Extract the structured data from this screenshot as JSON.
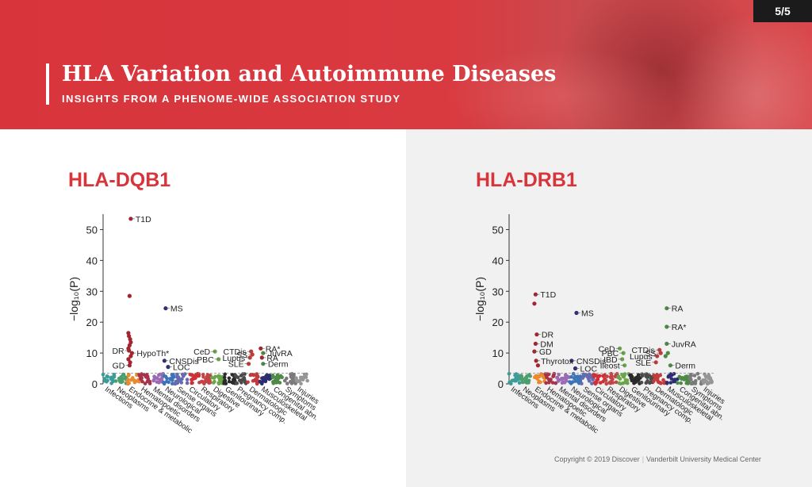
{
  "page": {
    "title": "HLA Variation and Autoimmune Diseases",
    "subtitle": "INSIGHTS FROM A PHENOME-WIDE ASSOCIATION STUDY",
    "page_number": "5/5",
    "footer": {
      "copyright": "Copyright © 2019 Discover",
      "organization": "Vanderbilt University Medical Center"
    }
  },
  "categories": [
    "Infections",
    "Neoplasms",
    "Endocrine & metabolic",
    "Hematopoetic",
    "Mental disorders",
    "Neurological",
    "Sense organs",
    "Circulatory",
    "Respiratory",
    "Digestive",
    "Genitourinary",
    "Pregnancy comp.",
    "Dermatologic",
    "Musculoskeletal",
    "Congenital abn.",
    "Symptoms",
    "Injuries"
  ],
  "category_colors": [
    "#3a9d9a",
    "#4d9e6d",
    "#e98a2e",
    "#a7324a",
    "#9a6bb4",
    "#3d74b8",
    "#666ab0",
    "#cf3036",
    "#c24444",
    "#6aa54a",
    "#2a2a2a",
    "#4a4a4a",
    "#c23a3a",
    "#2d2d72",
    "#4e8a46",
    "#7a7a7a",
    "#959595"
  ],
  "chart_data": [
    {
      "type": "scatter",
      "title": "HLA-DQB1",
      "ylabel": "−log₁₀(P)",
      "ylim": [
        0,
        55
      ],
      "yticks": [
        0,
        10,
        20,
        30,
        40,
        50
      ],
      "threshold": 3.5,
      "grid": false,
      "points": [
        {
          "label": "T1D",
          "cat": 2,
          "off": 0.3,
          "y": 53.5,
          "color": "#a3242f"
        },
        {
          "label": "",
          "cat": 2,
          "off": 0.2,
          "y": 28.5,
          "color": "#a3242f"
        },
        {
          "label": "",
          "cat": 2,
          "off": 0.1,
          "y": 16.5,
          "color": "#a3242f"
        },
        {
          "label": "",
          "cat": 2,
          "off": 0.15,
          "y": 15.5,
          "color": "#a3242f"
        },
        {
          "label": "",
          "cat": 2,
          "off": 0.25,
          "y": 14.5,
          "color": "#a3242f"
        },
        {
          "label": "",
          "cat": 2,
          "off": 0.3,
          "y": 13.5,
          "color": "#a3242f"
        },
        {
          "label": "",
          "cat": 2,
          "off": 0.2,
          "y": 12.5,
          "color": "#a3242f"
        },
        {
          "label": "",
          "cat": 2,
          "off": 0.1,
          "y": 11.5,
          "color": "#a3242f"
        },
        {
          "label": "DR",
          "cat": 2,
          "off": 0.15,
          "y": 10.8,
          "color": "#a3242f"
        },
        {
          "label": "HypoTh*",
          "cat": 2,
          "off": 0.4,
          "y": 10.0,
          "color": "#a3242f"
        },
        {
          "label": "",
          "cat": 2,
          "off": 0.3,
          "y": 9.0,
          "color": "#a3242f"
        },
        {
          "label": "",
          "cat": 2,
          "off": 0.1,
          "y": 8.0,
          "color": "#a3242f"
        },
        {
          "label": "",
          "cat": 2,
          "off": 0.25,
          "y": 7.0,
          "color": "#a3242f"
        },
        {
          "label": "GD",
          "cat": 2,
          "off": 0.2,
          "y": 6.0,
          "color": "#a3242f"
        },
        {
          "label": "MS",
          "cat": 5,
          "off": 0.2,
          "y": 24.5,
          "color": "#2d2d72"
        },
        {
          "label": "CNSDis",
          "cat": 5,
          "off": 0.1,
          "y": 7.5,
          "color": "#2d2d72"
        },
        {
          "label": "LOC",
          "cat": 5,
          "off": 0.4,
          "y": 5.5,
          "color": "#2d2d72"
        },
        {
          "label": "CeD",
          "cat": 9,
          "off": 0.3,
          "y": 10.5,
          "color": "#6aa54a"
        },
        {
          "label": "PBC",
          "cat": 9,
          "off": 0.6,
          "y": 8.0,
          "color": "#6aa54a"
        },
        {
          "label": "CTDis",
          "cat": 12,
          "off": 0.3,
          "y": 10.5,
          "color": "#c23a3a"
        },
        {
          "label": "SS",
          "cat": 12,
          "off": 0.4,
          "y": 9.5,
          "color": "#c23a3a"
        },
        {
          "label": "Lupus",
          "cat": 12,
          "off": 0.2,
          "y": 8.5,
          "color": "#c23a3a"
        },
        {
          "label": "SLE",
          "cat": 12,
          "off": 0.1,
          "y": 6.5,
          "color": "#c23a3a"
        },
        {
          "label": "RA*",
          "cat": 13,
          "off": 0.1,
          "y": 11.5,
          "color": "#a3242f"
        },
        {
          "label": "JuvRA",
          "cat": 13,
          "off": 0.3,
          "y": 10.0,
          "color": "#4e8a46"
        },
        {
          "label": "RA",
          "cat": 13,
          "off": 0.2,
          "y": 8.5,
          "color": "#a3242f"
        },
        {
          "label": "Derm",
          "cat": 13,
          "off": 0.3,
          "y": 6.5,
          "color": "#4e8a46"
        }
      ]
    },
    {
      "type": "scatter",
      "title": "HLA-DRB1",
      "ylabel": "−log₁₀(P)",
      "ylim": [
        0,
        55
      ],
      "yticks": [
        0,
        10,
        20,
        30,
        40,
        50
      ],
      "threshold": 3.5,
      "grid": false,
      "points": [
        {
          "label": "T1D",
          "cat": 2,
          "off": 0.2,
          "y": 29.0,
          "color": "#a3242f"
        },
        {
          "label": "",
          "cat": 2,
          "off": 0.1,
          "y": 26.0,
          "color": "#a3242f"
        },
        {
          "label": "DR",
          "cat": 2,
          "off": 0.3,
          "y": 16.0,
          "color": "#a3242f"
        },
        {
          "label": "DM",
          "cat": 2,
          "off": 0.2,
          "y": 13.0,
          "color": "#a3242f"
        },
        {
          "label": "GD",
          "cat": 2,
          "off": 0.1,
          "y": 10.5,
          "color": "#a3242f"
        },
        {
          "label": "Thyrotox",
          "cat": 2,
          "off": 0.25,
          "y": 7.5,
          "color": "#a3242f"
        },
        {
          "label": "",
          "cat": 2,
          "off": 0.4,
          "y": 6.0,
          "color": "#a3242f"
        },
        {
          "label": "MS",
          "cat": 5,
          "off": 0.6,
          "y": 23.0,
          "color": "#2d2d72"
        },
        {
          "label": "CNSDis",
          "cat": 5,
          "off": 0.2,
          "y": 7.5,
          "color": "#2d2d72"
        },
        {
          "label": "LOC",
          "cat": 5,
          "off": 0.5,
          "y": 5.0,
          "color": "#2d2d72"
        },
        {
          "label": "CeD",
          "cat": 9,
          "off": 0.2,
          "y": 11.5,
          "color": "#6aa54a"
        },
        {
          "label": "PBC",
          "cat": 9,
          "off": 0.5,
          "y": 10.0,
          "color": "#6aa54a"
        },
        {
          "label": "IBD",
          "cat": 9,
          "off": 0.4,
          "y": 8.0,
          "color": "#6aa54a"
        },
        {
          "label": "Ileost",
          "cat": 9,
          "off": 0.6,
          "y": 6.0,
          "color": "#6aa54a"
        },
        {
          "label": "CTDis",
          "cat": 12,
          "off": 0.5,
          "y": 11.0,
          "color": "#c23a3a"
        },
        {
          "label": "SS",
          "cat": 12,
          "off": 0.6,
          "y": 10.0,
          "color": "#c23a3a"
        },
        {
          "label": "Lupus",
          "cat": 12,
          "off": 0.3,
          "y": 9.0,
          "color": "#c23a3a"
        },
        {
          "label": "SLE",
          "cat": 12,
          "off": 0.2,
          "y": 7.0,
          "color": "#c23a3a"
        },
        {
          "label": "RA",
          "cat": 13,
          "off": 0.1,
          "y": 24.5,
          "color": "#4e8a46"
        },
        {
          "label": "RA*",
          "cat": 13,
          "off": 0.1,
          "y": 18.5,
          "color": "#4e8a46"
        },
        {
          "label": "JuvRA",
          "cat": 13,
          "off": 0.1,
          "y": 13.0,
          "color": "#4e8a46"
        },
        {
          "label": "",
          "cat": 13,
          "off": 0.2,
          "y": 10.0,
          "color": "#4e8a46"
        },
        {
          "label": "",
          "cat": 13,
          "off": 0.0,
          "y": 9.0,
          "color": "#4e8a46"
        },
        {
          "label": "Derm",
          "cat": 13,
          "off": 0.4,
          "y": 6.0,
          "color": "#4e8a46"
        }
      ]
    }
  ]
}
